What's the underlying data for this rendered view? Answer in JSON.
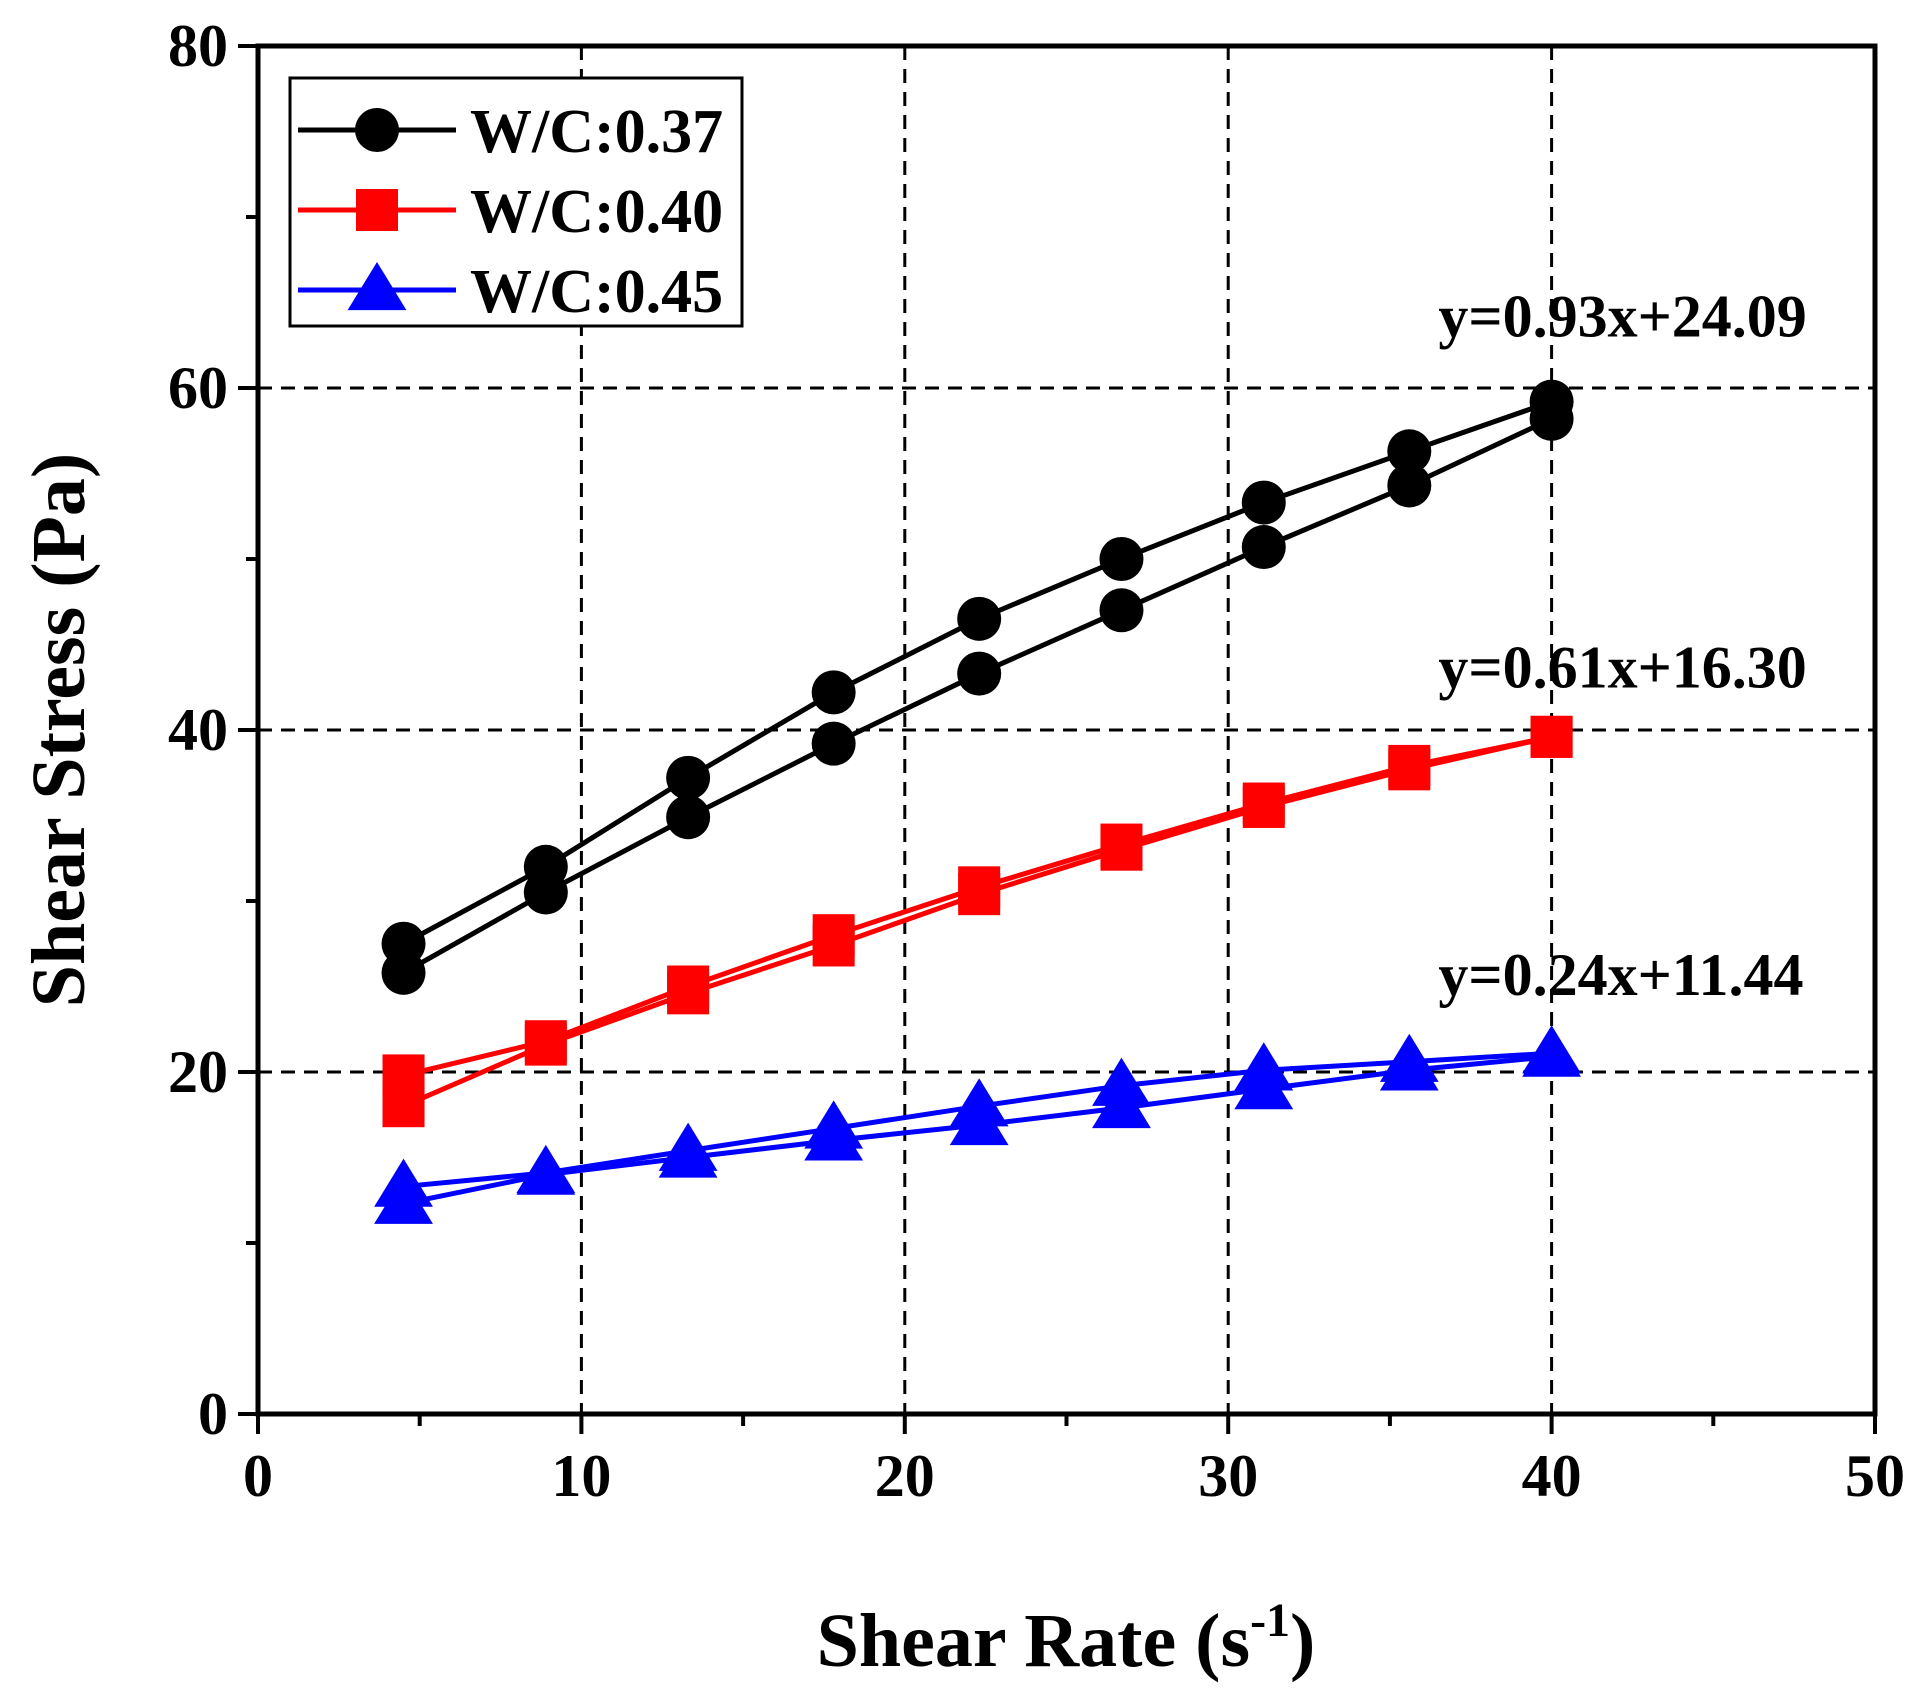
{
  "chart_data": {
    "type": "line",
    "xlabel": "Shear Rate (s",
    "xlabel_sup": "-1",
    "xlabel_close": ")",
    "ylabel": "Shear Stress (Pa)",
    "xlim": [
      0,
      50
    ],
    "ylim": [
      0,
      80
    ],
    "x_ticks": [
      0,
      10,
      20,
      30,
      40,
      50
    ],
    "y_ticks": [
      0,
      20,
      40,
      60,
      80
    ],
    "x_tick_labels": [
      "0",
      "10",
      "20",
      "30",
      "40",
      "50"
    ],
    "y_tick_labels": [
      "0",
      "20",
      "40",
      "60",
      "80"
    ],
    "x_grid": [
      10,
      20,
      30,
      40
    ],
    "y_grid": [
      20,
      40,
      60
    ],
    "legend_position": "top-left",
    "series": [
      {
        "name": "W/C:0.37",
        "color": "#000000",
        "marker": "circle",
        "x": [
          4.5,
          8.9,
          13.3,
          17.8,
          22.3,
          26.7,
          31.1,
          35.6,
          40.0,
          40.0,
          35.6,
          31.1,
          26.7,
          22.3,
          17.8,
          13.3,
          8.9,
          4.5
        ],
        "values": [
          27.5,
          32.0,
          37.2,
          42.2,
          46.5,
          50.0,
          53.3,
          56.3,
          59.2,
          58.2,
          54.3,
          50.7,
          47.0,
          43.3,
          39.2,
          34.9,
          30.5,
          25.8
        ]
      },
      {
        "name": "W/C:0.40",
        "color": "#ff0000",
        "marker": "square",
        "x": [
          4.5,
          8.9,
          13.3,
          17.8,
          22.3,
          26.7,
          31.1,
          35.6,
          40.0,
          40.0,
          35.6,
          31.1,
          26.7,
          22.3,
          17.8,
          13.3,
          8.9,
          4.5
        ],
        "values": [
          19.8,
          21.8,
          25.0,
          28.0,
          30.8,
          33.3,
          35.7,
          37.9,
          39.6,
          39.6,
          37.7,
          35.5,
          33.0,
          30.4,
          27.4,
          24.6,
          21.6,
          18.0
        ]
      },
      {
        "name": "W/C:0.45",
        "color": "#0000ff",
        "marker": "triangle",
        "x": [
          4.5,
          8.9,
          13.3,
          17.8,
          22.3,
          26.7,
          31.1,
          35.6,
          40.0,
          40.0,
          35.6,
          31.1,
          26.7,
          22.3,
          17.8,
          13.3,
          8.9,
          4.5
        ],
        "values": [
          13.3,
          14.1,
          15.4,
          16.7,
          18.0,
          19.2,
          20.1,
          20.6,
          21.1,
          20.9,
          20.1,
          19.0,
          17.9,
          16.9,
          16.0,
          15.0,
          14.0,
          12.3
        ]
      }
    ],
    "annotations": [
      {
        "text": "y=0.93x+24.09",
        "x": 36.5,
        "y": 63.0
      },
      {
        "text": "y=0.61x+16.30",
        "x": 36.5,
        "y": 42.5
      },
      {
        "text": "y=0.24x+11.44",
        "x": 36.5,
        "y": 24.5
      }
    ]
  }
}
